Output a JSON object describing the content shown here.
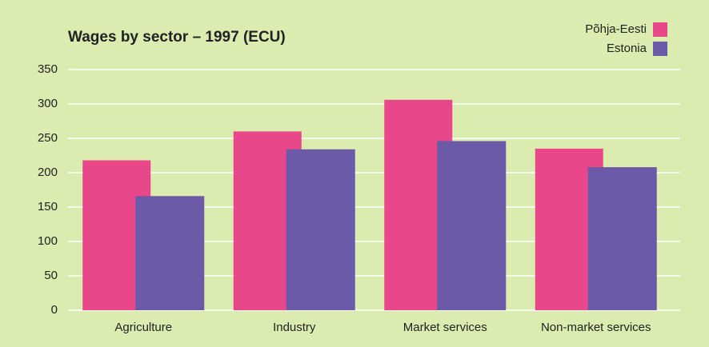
{
  "chart_data": {
    "type": "bar",
    "title": "Wages by sector – 1997 (ECU)",
    "categories": [
      "Agriculture",
      "Industry",
      "Market services",
      "Non-market services"
    ],
    "series": [
      {
        "name": "Põhja-Eesti",
        "color": "#e8478a",
        "values": [
          218,
          260,
          306,
          235
        ]
      },
      {
        "name": "Estonia",
        "color": "#6a5aa8",
        "values": [
          166,
          234,
          246,
          208
        ]
      }
    ],
    "ylim": [
      0,
      350
    ],
    "yticks": [
      0,
      50,
      100,
      150,
      200,
      250,
      300,
      350
    ],
    "grid": true,
    "legend": "top-right"
  }
}
